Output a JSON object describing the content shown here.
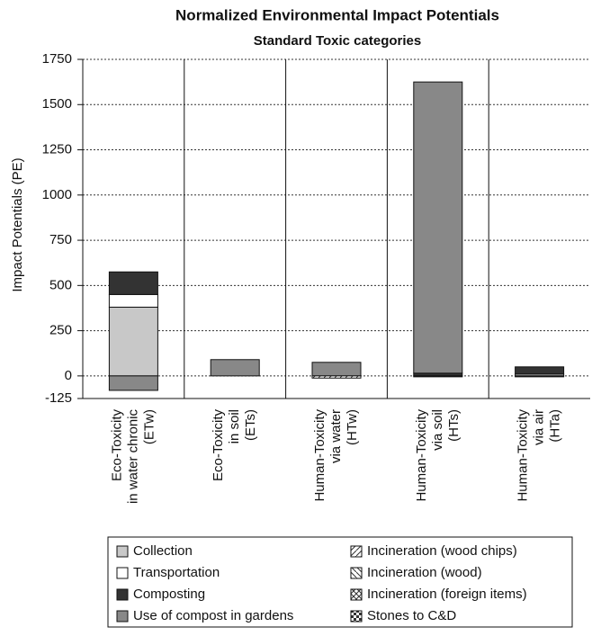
{
  "chart_data": {
    "type": "stacked-bar",
    "title": "Normalized Environmental Impact Potentials",
    "subtitle": "Standard Toxic categories",
    "y_label": "Impact Potentials (PE)",
    "categories": [
      [
        "Eco-Toxicity",
        "in water chronic",
        "(ETw)"
      ],
      [
        "Eco-Toxicity",
        "in soil",
        "(ETs)"
      ],
      [
        "Human-Toxicity",
        "via water",
        "(HTw)"
      ],
      [
        "Human-Toxicity",
        "via soil",
        "(HTs)"
      ],
      [
        "Human-Toxicity",
        "via air",
        "(HTa)"
      ]
    ],
    "series": [
      {
        "name": "Collection",
        "color": "#c8c8c8",
        "values": [
          380,
          0,
          0,
          0,
          10
        ]
      },
      {
        "name": "Transportation",
        "color": "#ffffff",
        "values": [
          70,
          0,
          0,
          0,
          0
        ]
      },
      {
        "name": "Composting",
        "color": "#333333",
        "values": [
          125,
          0,
          0,
          15,
          40
        ]
      },
      {
        "name": "Use of compost in gardens",
        "color": "#888888",
        "values": [
          -80,
          90,
          75,
          1610,
          0
        ]
      },
      {
        "name": "Incineration (wood chips)",
        "color": "#333333",
        "pattern": "hatch-right",
        "values": [
          0,
          0,
          -12,
          -5,
          -5
        ]
      },
      {
        "name": "Incineration (wood)",
        "color": "#333333",
        "pattern": "hatch-left",
        "values": [
          0,
          0,
          0,
          0,
          0
        ]
      },
      {
        "name": "Incineration (foreign items)",
        "color": "#333333",
        "pattern": "cross",
        "values": [
          0,
          0,
          0,
          0,
          0
        ]
      },
      {
        "name": "Stones to C&D",
        "color": "#333333",
        "pattern": "checker",
        "values": [
          0,
          0,
          0,
          0,
          0
        ]
      }
    ],
    "ylim": [
      -125,
      1750
    ],
    "yticks": [
      -125,
      0,
      250,
      500,
      750,
      1000,
      1250,
      1500,
      1750
    ],
    "grid": true
  }
}
